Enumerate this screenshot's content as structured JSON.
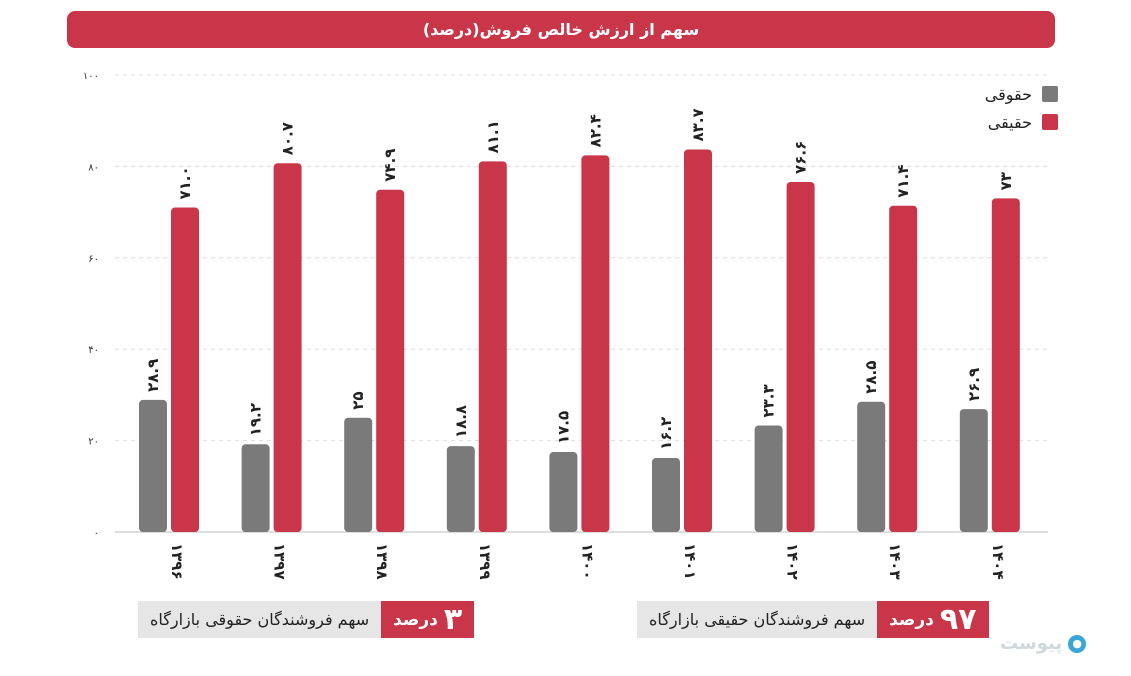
{
  "chart_data": {
    "type": "bar",
    "title": "سهم از ارزش خالص فروش(درصد)",
    "categories": [
      "۱۳۹۶",
      "۱۳۹۷",
      "۱۳۹۸",
      "۱۳۹۹",
      "۱۴۰۰",
      "۱۴۰۱",
      "۱۴۰۲",
      "۱۴۰۳",
      "۱۴۰۴"
    ],
    "series": [
      {
        "name": "حقوقی",
        "color": "#7a7a7a",
        "values": [
          28.9,
          19.2,
          25,
          18.8,
          17.5,
          16.2,
          23.3,
          28.5,
          26.9
        ],
        "labels": [
          "۲۸.۹",
          "۱۹.۲",
          "۲۵",
          "۱۸.۸",
          "۱۷.۵",
          "۱۶.۲",
          "۲۳.۳",
          "۲۸.۵",
          "۲۶.۹"
        ]
      },
      {
        "name": "حقیقی",
        "color": "#c9364a",
        "values": [
          71.0,
          80.7,
          74.9,
          81.1,
          82.4,
          83.7,
          76.6,
          71.4,
          73
        ],
        "labels": [
          "۷۱.۰",
          "۸۰.۷",
          "۷۴.۹",
          "۸۱.۱",
          "۸۲.۴",
          "۸۳.۷",
          "۷۶.۶",
          "۷۱.۴",
          "۷۳"
        ]
      }
    ],
    "yticks": [
      0,
      20,
      40,
      60,
      80,
      100
    ],
    "ytick_labels": [
      "۰",
      "۲۰",
      "۴۰",
      "۶۰",
      "۸۰",
      "۱۰۰"
    ],
    "ylim": [
      0,
      100
    ],
    "grid": "dashed-horizontal",
    "legend": "top-right"
  },
  "summary_left": {
    "number": "۳",
    "unit": "درصد",
    "text": "سهم فروشندگان حقوقی بازارگاه"
  },
  "summary_right": {
    "number": "۹۷",
    "unit": "درصد",
    "text": "سهم فروشندگان حقیقی بازارگاه"
  },
  "logo": {
    "text": "پیوست"
  }
}
